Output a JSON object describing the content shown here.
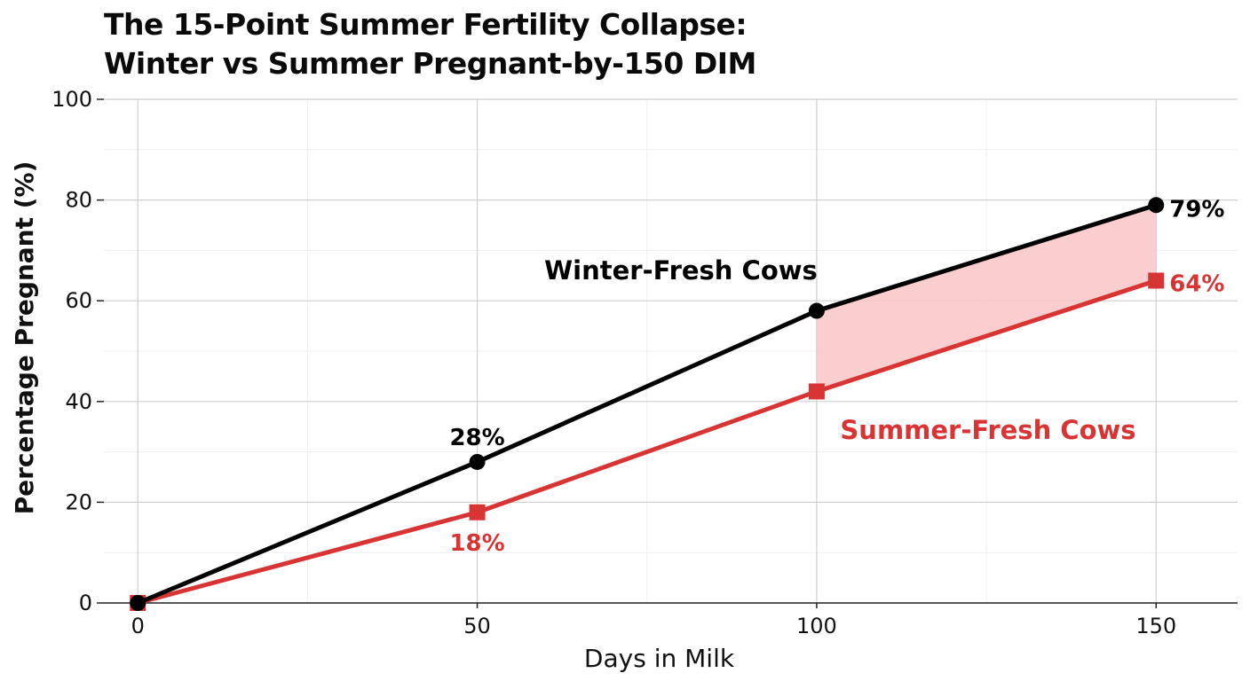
{
  "chart_data": {
    "type": "line",
    "title": "The 15-Point Summer Fertility Collapse:",
    "subtitle": "Winter vs Summer Pregnant-by-150 DIM",
    "xlabel": "Days in Milk",
    "ylabel": "Percentage Pregnant (%)",
    "x": [
      0,
      50,
      100,
      150
    ],
    "xlim": [
      -5,
      162
    ],
    "ylim": [
      0,
      100
    ],
    "xticks": [
      0,
      50,
      100,
      150
    ],
    "yticks": [
      0,
      20,
      40,
      60,
      80,
      100
    ],
    "grid": true,
    "series": [
      {
        "name": "Winter-Fresh Cows",
        "values": [
          0,
          28,
          58,
          79
        ],
        "color": "#000000",
        "marker": "circle",
        "point_labels": [
          "",
          "28%",
          "",
          "79%"
        ]
      },
      {
        "name": "Summer-Fresh Cows",
        "values": [
          0,
          18,
          42,
          64
        ],
        "color": "#d93434",
        "marker": "square",
        "point_labels": [
          "",
          "18%",
          "",
          "64%"
        ]
      }
    ],
    "shaded_gap": {
      "x_from": 100,
      "x_to": 150,
      "color": "#f9c5c5"
    }
  }
}
